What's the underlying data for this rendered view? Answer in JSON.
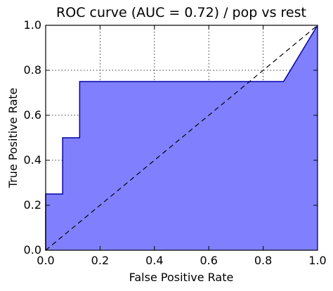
{
  "chart_data": {
    "type": "area",
    "title": "ROC curve (AUC = 0.72) / pop vs rest",
    "xlabel": "False Positive Rate",
    "ylabel": "True Positive Rate",
    "xlim": [
      0.0,
      1.0
    ],
    "ylim": [
      0.0,
      1.0
    ],
    "xticks": [
      "0.0",
      "0.2",
      "0.4",
      "0.6",
      "0.8",
      "1.0"
    ],
    "yticks": [
      "0.0",
      "0.2",
      "0.4",
      "0.6",
      "0.8",
      "1.0"
    ],
    "grid": true,
    "series": [
      {
        "kind": "roc-step",
        "x": [
          0.0,
          0.0,
          0.0625,
          0.0625,
          0.125,
          0.125,
          0.875,
          1.0
        ],
        "y": [
          0.0,
          0.25,
          0.25,
          0.5,
          0.5,
          0.75,
          0.75,
          1.0
        ],
        "fill": true
      },
      {
        "kind": "diagonal",
        "x": [
          0.0,
          1.0
        ],
        "y": [
          0.0,
          1.0
        ]
      }
    ],
    "colors": {
      "fill": "#8080ff",
      "line": "#0000aa",
      "diagonal": "#000000",
      "grid": "#000000"
    }
  }
}
